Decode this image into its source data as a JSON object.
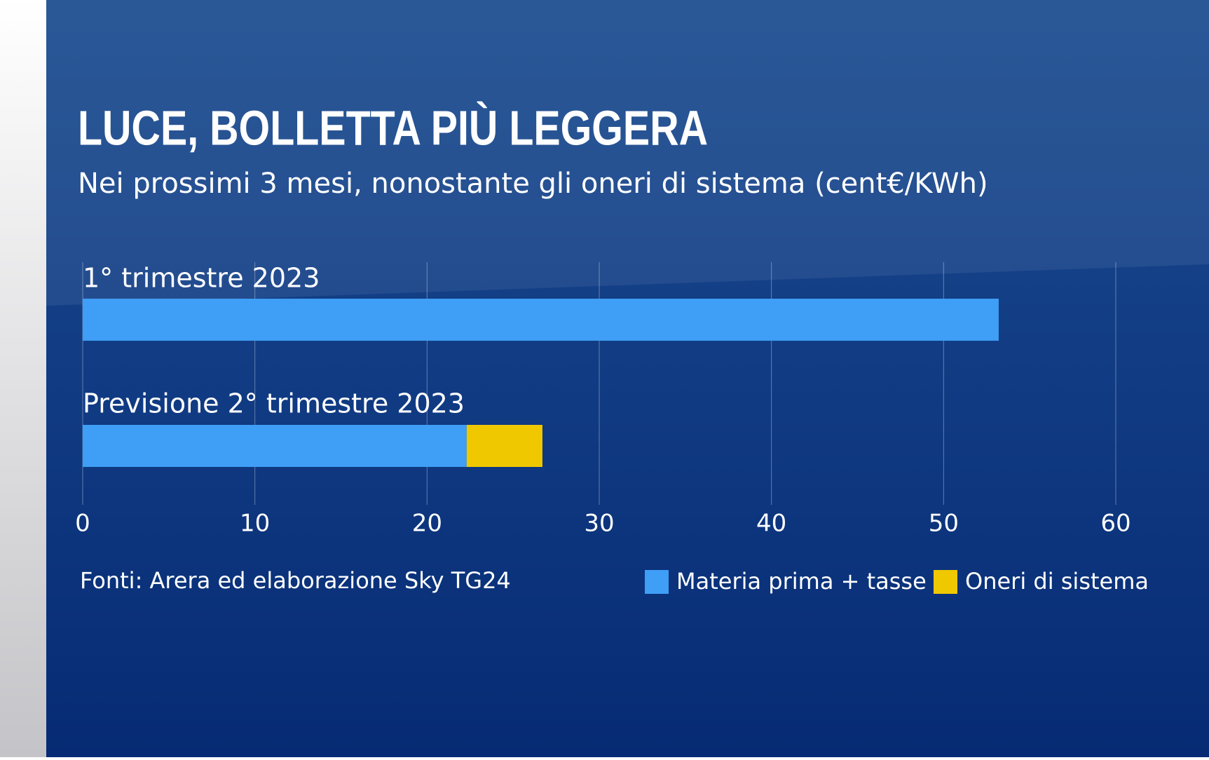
{
  "chart_data": {
    "type": "stacked-barh",
    "title": "LUCE, BOLLETTA PIÙ LEGGERA",
    "subtitle": "Nei prossimi 3 mesi, nonostante gli oneri di sistema (cent€/KWh)",
    "source": "Fonti: Arera ed elaborazione Sky TG24",
    "categories": [
      "1° trimestre 2023",
      "Previsione 2° trimestre 2023"
    ],
    "series": [
      {
        "name": "Materia prima + tasse",
        "color": "#3f9ef5",
        "values": [
          53.2,
          22.3
        ]
      },
      {
        "name": "Oneri di sistema",
        "color": "#f0c800",
        "values": [
          null,
          4.4
        ]
      }
    ],
    "xlim": [
      0,
      60
    ],
    "xticks": [
      0,
      10,
      20,
      30,
      40,
      50,
      60
    ],
    "grid": true,
    "legend": "bottom-right"
  }
}
